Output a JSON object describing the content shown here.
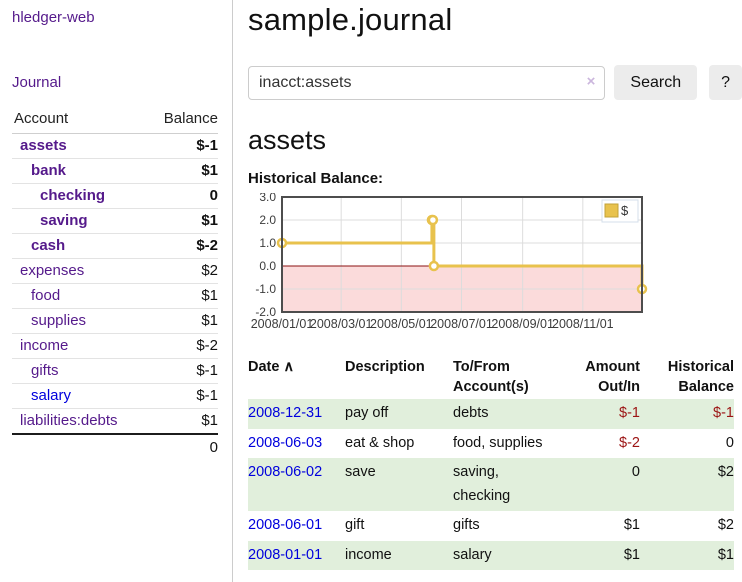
{
  "app": {
    "title": "hledger-web"
  },
  "sidebar": {
    "nav": {
      "journal_label": "Journal"
    },
    "accounts_table": {
      "headers": {
        "account": "Account",
        "balance": "Balance"
      },
      "rows": [
        {
          "name": "assets",
          "balance": "$-1",
          "indent": 1,
          "bold": true,
          "balance_style": "negative"
        },
        {
          "name": "bank",
          "balance": "$1",
          "indent": 2,
          "bold": true,
          "balance_style": "normal"
        },
        {
          "name": "checking",
          "balance": "0",
          "indent": 3,
          "bold": true,
          "balance_style": "normal"
        },
        {
          "name": "saving",
          "balance": "$1",
          "indent": 3,
          "bold": true,
          "balance_style": "normal"
        },
        {
          "name": "cash",
          "balance": "$-2",
          "indent": 2,
          "bold": true,
          "balance_style": "negative"
        },
        {
          "name": "expenses",
          "balance": "$2",
          "indent": 1,
          "bold": false,
          "balance_style": "normal"
        },
        {
          "name": "food",
          "balance": "$1",
          "indent": 2,
          "bold": false,
          "balance_style": "normal"
        },
        {
          "name": "supplies",
          "balance": "$1",
          "indent": 2,
          "bold": false,
          "balance_style": "normal"
        },
        {
          "name": "income",
          "balance": "$-2",
          "indent": 1,
          "bold": false,
          "balance_style": "negative-faded"
        },
        {
          "name": "gifts",
          "balance": "$-1",
          "indent": 2,
          "bold": false,
          "balance_style": "negative-faded"
        },
        {
          "name": "salary",
          "balance": "$-1",
          "indent": 2,
          "bold": false,
          "balance_style": "negative-faded",
          "link_style": "unvisited"
        },
        {
          "name": "liabilities:debts",
          "balance": "$1",
          "indent": 1,
          "bold": false,
          "balance_style": "normal"
        }
      ],
      "total": "0"
    }
  },
  "main": {
    "title": "sample.journal",
    "search": {
      "value": "inacct:assets",
      "clear_icon": "×",
      "button_label": "Search",
      "help_label": "?"
    },
    "account_heading": "assets",
    "chart_label": "Historical Balance:"
  },
  "chart_data": {
    "type": "line",
    "step": true,
    "title": "Historical Balance",
    "series": [
      {
        "name": "$",
        "color": "#e8c24d",
        "points": [
          [
            "2008-01-01",
            1
          ],
          [
            "2008-06-01",
            2
          ],
          [
            "2008-06-02",
            2
          ],
          [
            "2008-06-03",
            0
          ],
          [
            "2008-12-31",
            -1
          ]
        ]
      }
    ],
    "x_range": [
      "2008-01-01",
      "2008-12-31"
    ],
    "ylim": [
      -2,
      3
    ],
    "yticks": [
      3.0,
      2.0,
      1.0,
      0.0,
      -1.0,
      -2.0
    ],
    "xticks": [
      "2008/01/01",
      "2008/03/01",
      "2008/05/01",
      "2008/07/01",
      "2008/09/01",
      "2008/11/01"
    ],
    "grid": true,
    "negative_fill": "#fbdbdb",
    "zero_line_color": "#8b1010",
    "legend": {
      "position": "top-right",
      "label": "$"
    }
  },
  "register_table": {
    "headers": {
      "date": "Date",
      "sort_icon": "∧",
      "description": "Description",
      "accounts": "To/From Account(s)",
      "amount": "Amount Out/In",
      "balance": "Historical Balance"
    },
    "rows": [
      {
        "date": "2008-12-31",
        "description": "pay off",
        "accounts": "debts",
        "amount": "$-1",
        "amount_style": "negative",
        "balance": "$-1",
        "balance_style": "negative",
        "striped": true
      },
      {
        "date": "2008-06-03",
        "description": "eat & shop",
        "accounts": "food, supplies",
        "amount": "$-2",
        "amount_style": "negative",
        "balance": "0",
        "balance_style": "normal",
        "striped": false
      },
      {
        "date": "2008-06-02",
        "description": "save",
        "accounts": "saving, checking",
        "amount": "0",
        "amount_style": "normal",
        "balance": "$2",
        "balance_style": "normal",
        "striped": true
      },
      {
        "date": "2008-06-01",
        "description": "gift",
        "accounts": "gifts",
        "amount": "$1",
        "amount_style": "normal",
        "balance": "$2",
        "balance_style": "normal",
        "striped": false
      },
      {
        "date": "2008-01-01",
        "description": "income",
        "accounts": "salary",
        "amount": "$1",
        "amount_style": "normal",
        "balance": "$1",
        "balance_style": "normal",
        "striped": true
      }
    ]
  }
}
